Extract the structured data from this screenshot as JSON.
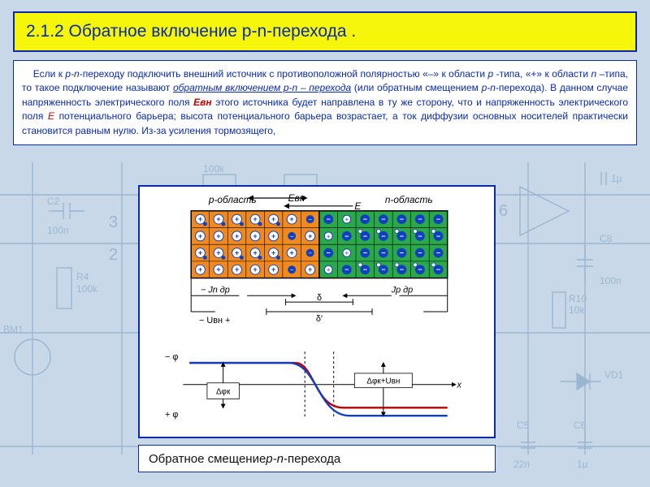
{
  "title": "2.1.2 Обратное включение p-n-перехода .",
  "paragraph": {
    "lead_indent": "    ",
    "t1": "Если к ",
    "pn1": "p-n",
    "t2": "-переходу подключить внешний источник с противоположной полярностью «–» к области ",
    "p": "p",
    "t3": " -типа, «+» к области ",
    "n": "n",
    "t4": " –типа, то такое подключение называют ",
    "term": "обратным включением p-n – перехода",
    "t5": " (или обратным смещением ",
    "pn2": "p-n",
    "t6": "-перехода). В данном случае напряженность электрического поля ",
    "evn": "Eвн",
    "t7": "  этого источника будет направлена в ту же сторону, что и напряженность электрического поля ",
    "e": "E",
    "t8": "   потенциального барьера; высота потенциального барьера возрастает, а ток диффузии основных носителей практически становится равным нулю. Из-за усиления тормозящего,"
  },
  "caption_prefix": "Обратное смещение ",
  "caption_pn": "p-n",
  "caption_suffix": "-перехода",
  "bg": {
    "line_color": "#4a7aa8",
    "text_color": "#4a7aa8",
    "labels": {
      "c2": "C2",
      "c2v": "100п",
      "r4": "R4",
      "r4v": "100k",
      "bm1": "BM1",
      "r10": "R10",
      "r10v": "10k",
      "c8": "C8",
      "c8v": "100п",
      "vd1": "VD1",
      "c5": "C5",
      "c5v": "22п",
      "c6": "C6",
      "c6v": "1µ",
      "n3": "3",
      "n2": "2",
      "n6": "6",
      "top100k": "100k",
      "top1u": "1µ"
    }
  },
  "diagram": {
    "colors": {
      "p_region": "#f08a1e",
      "n_region": "#2aa84a",
      "border": "#000000",
      "hole": "#ffffff",
      "hole_sign": "#1040c0",
      "electron": "#1040c0",
      "electron_sign": "#ffffff",
      "grid_line": "#000000",
      "arrow": "#000000",
      "curve_p": "#c00000",
      "curve_n": "#1040c0",
      "text": "#000000"
    },
    "labels": {
      "p_region": "p-область",
      "n_region": "n-область",
      "E_vn": "Eвн",
      "E": "E",
      "J_n_dr": "Jn др",
      "J_p_dr": "Jp др",
      "U_vn_minus": "−",
      "U_vn": "Uвн",
      "U_vn_plus": "+",
      "minus_phi": "− φ",
      "plus_phi": "+ φ",
      "delta_phi_k": "Δφк",
      "delta_phi_k_U": "Δφк+Uвн",
      "delta": "δ",
      "delta_prime": "δ′",
      "x": "x"
    },
    "charges": {
      "rows": 4,
      "p_cols": 7,
      "n_cols": 7
    }
  }
}
